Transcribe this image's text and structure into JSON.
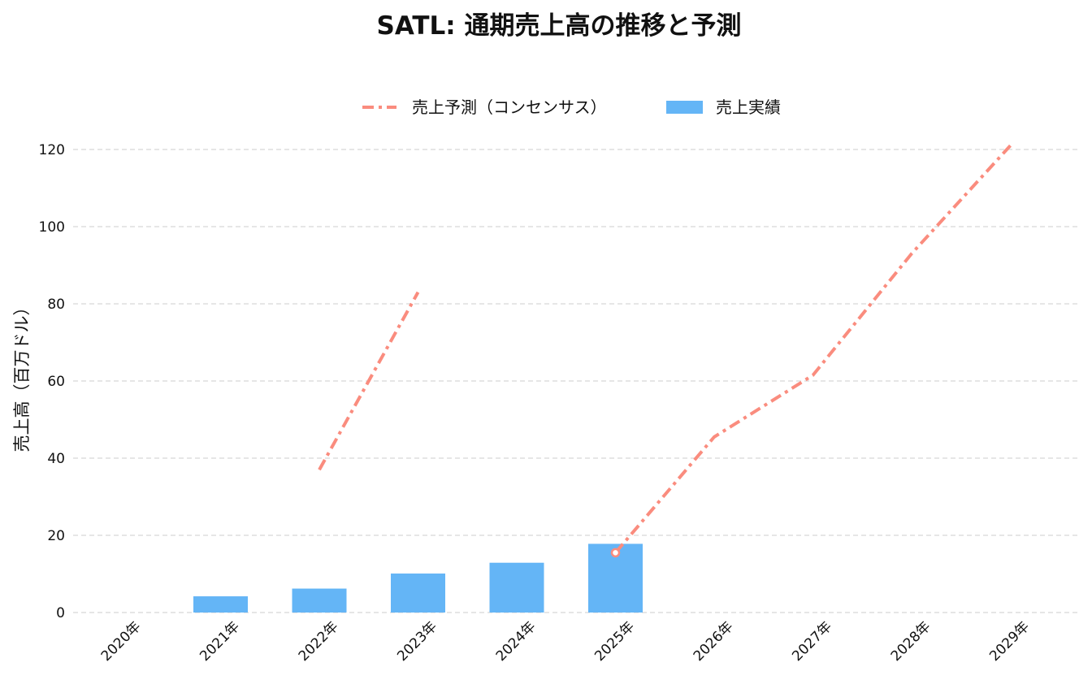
{
  "chart_data": {
    "type": "bar",
    "title": "SATL: 通期売上高の推移と予測",
    "ylabel": "売上高（百万ドル）",
    "xlabel": "",
    "ylim": [
      0,
      125
    ],
    "y_ticks": [
      0,
      20,
      40,
      60,
      80,
      100,
      120
    ],
    "categories": [
      "2020年",
      "2021年",
      "2022年",
      "2023年",
      "2024年",
      "2025年",
      "2026年",
      "2027年",
      "2028年",
      "2029年"
    ],
    "grid": true,
    "legend_position": "top-center",
    "series": [
      {
        "name": "売上予測（コンセンサス）",
        "type": "line",
        "style": "dash-dot",
        "color": "#fa8c7e",
        "segments": [
          [
            {
              "x": "2022年",
              "y": 37
            },
            {
              "x": "2023年",
              "y": 83
            }
          ],
          [
            {
              "x": "2025年",
              "y": 15.5
            },
            {
              "x": "2026年",
              "y": 45.5
            },
            {
              "x": "2027年",
              "y": 61.5
            },
            {
              "x": "2028年",
              "y": 93
            },
            {
              "x": "2029年",
              "y": 121
            }
          ]
        ]
      },
      {
        "name": "売上実績",
        "type": "bar",
        "color": "#64b5f6",
        "values": [
          null,
          4.2,
          6.2,
          10.1,
          12.9,
          17.8,
          null,
          null,
          null,
          null
        ]
      }
    ],
    "markers": [
      {
        "x": "2025年",
        "y": 15.5,
        "shape": "open-circle"
      }
    ]
  }
}
